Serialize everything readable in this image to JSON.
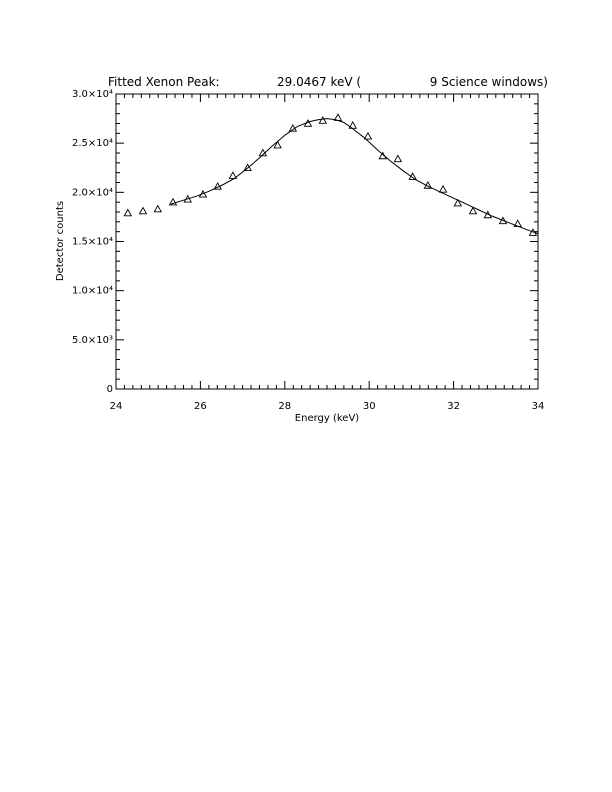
{
  "chart_data": {
    "type": "scatter",
    "title": {
      "prefix": "Fitted Xenon Peak:",
      "value": "29.0467 keV (",
      "suffix": "9 Science windows)"
    },
    "xlabel": "Energy (keV)",
    "ylabel": "Detector counts",
    "xlim": [
      24,
      34
    ],
    "ylim": [
      0,
      30000
    ],
    "x_ticks": [
      {
        "value": 24,
        "label": "24"
      },
      {
        "value": 26,
        "label": "26"
      },
      {
        "value": 28,
        "label": "28"
      },
      {
        "value": 30,
        "label": "30"
      },
      {
        "value": 32,
        "label": "32"
      },
      {
        "value": 34,
        "label": "34"
      }
    ],
    "y_ticks": [
      {
        "value": 0,
        "label": "0"
      },
      {
        "value": 5000,
        "label": "5.0×10³"
      },
      {
        "value": 10000,
        "label": "1.0×10⁴"
      },
      {
        "value": 15000,
        "label": "1.5×10⁴"
      },
      {
        "value": 20000,
        "label": "2.0×10⁴"
      },
      {
        "value": 25000,
        "label": "2.5×10⁴"
      },
      {
        "value": 30000,
        "label": "3.0×10⁴"
      }
    ],
    "x_minor_per_major": 10,
    "y_minor_per_major": 5,
    "grid": false,
    "series": [
      {
        "marker": "triangle",
        "x": [
          24.28,
          24.64,
          24.99,
          25.35,
          25.7,
          26.06,
          26.41,
          26.77,
          27.12,
          27.48,
          27.83,
          28.19,
          28.55,
          28.9,
          29.26,
          29.61,
          29.97,
          30.32,
          30.68,
          31.03,
          31.39,
          31.75,
          32.1,
          32.46,
          32.81,
          33.17,
          33.52,
          33.88
        ],
        "y": [
          17900,
          18100,
          18300,
          19000,
          19300,
          19800,
          20600,
          21700,
          22500,
          24000,
          24800,
          26500,
          27000,
          27300,
          27600,
          26800,
          25700,
          23700,
          23400,
          21600,
          20700,
          20300,
          18900,
          18100,
          17700,
          17100,
          16800,
          15900
        ]
      },
      {
        "style": "line",
        "x": [
          25.3,
          25.6,
          25.9,
          26.2,
          26.5,
          26.8,
          27.1,
          27.4,
          27.7,
          28.0,
          28.3,
          28.6,
          28.8,
          29.0,
          29.2,
          29.4,
          29.6,
          29.9,
          30.2,
          30.5,
          30.8,
          31.1,
          31.4,
          31.7,
          32.0,
          32.3,
          32.6,
          32.9,
          33.2,
          33.5,
          33.8,
          34.0
        ],
        "y": [
          18800,
          19200,
          19600,
          20100,
          20700,
          21400,
          22400,
          23500,
          24700,
          25800,
          26700,
          27200,
          27400,
          27500,
          27400,
          27100,
          26500,
          25500,
          24300,
          23200,
          22200,
          21300,
          20600,
          20000,
          19400,
          18800,
          18200,
          17600,
          17100,
          16600,
          16100,
          15800
        ]
      }
    ]
  }
}
